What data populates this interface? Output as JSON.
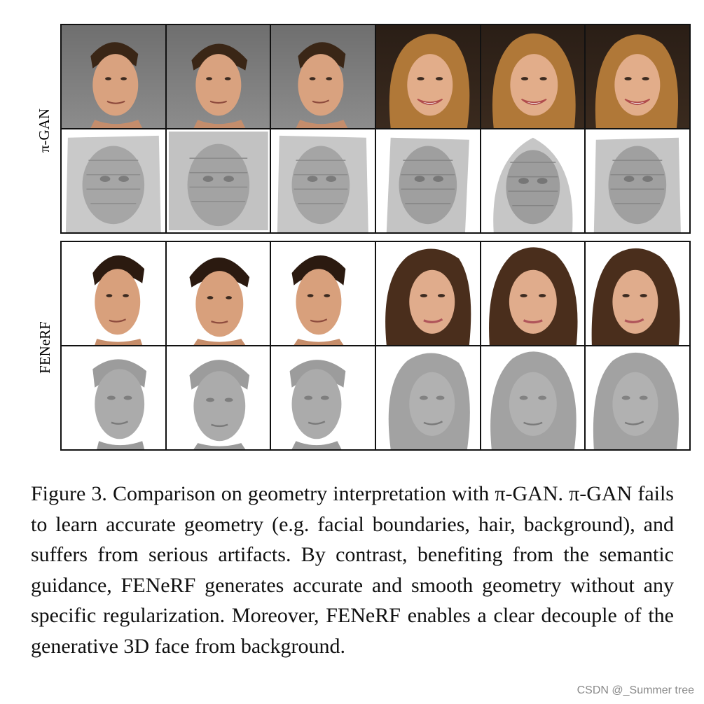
{
  "figure": {
    "rows": [
      {
        "label": "π-GAN",
        "faces": [
          "man-front-left",
          "man-front",
          "man-front-right",
          "woman-front-left",
          "woman-front",
          "woman-front-right"
        ],
        "meshes": [
          "noisy-mesh",
          "noisy-mesh",
          "noisy-mesh",
          "noisy-mesh",
          "noisy-mesh",
          "noisy-mesh"
        ]
      },
      {
        "label": "FENeRF",
        "faces": [
          "man-front-left",
          "man-front",
          "man-front-right",
          "woman-front-left",
          "woman-front",
          "woman-front-right"
        ],
        "meshes": [
          "smooth-mesh",
          "smooth-mesh",
          "smooth-mesh",
          "smooth-mesh",
          "smooth-mesh",
          "smooth-mesh"
        ]
      }
    ],
    "caption": "Figure 3. Comparison on geometry interpretation with π-GAN. π-GAN fails to learn accurate geometry (e.g. facial boundaries, hair, background), and suffers from serious artifacts. By contrast, benefiting from the semantic guidance, FENeRF generates accurate and smooth geometry without any specific regularization. Moreover, FENeRF enables a clear decouple of the generative 3D face from background."
  },
  "watermark": "CSDN @_Summer tree",
  "colors": {
    "skin": "#d9a27f",
    "hair_dark": "#2b1a10",
    "hair_blonde": "#b07838",
    "mesh": "#a9a9a9"
  }
}
